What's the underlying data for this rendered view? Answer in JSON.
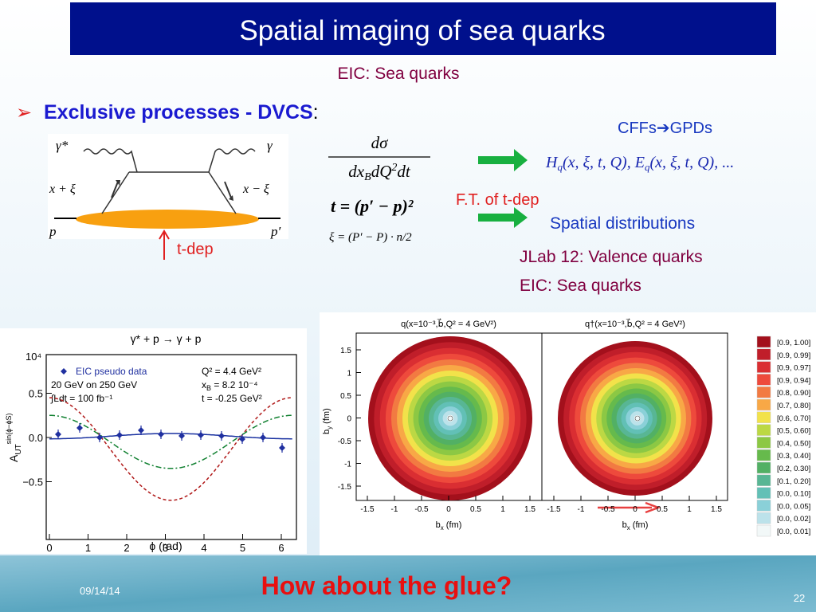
{
  "header": {
    "title": "Spatial imaging of sea quarks",
    "subtitle": "EIC: Sea quarks"
  },
  "bullet": {
    "marker": "➢",
    "text": "Exclusive processes - DVCS",
    "colon": ":"
  },
  "diagram": {
    "labels": [
      "γ*",
      "γ",
      "x + ξ",
      "x − ξ",
      "p",
      "p′"
    ],
    "t_dep": "t-dep"
  },
  "formulas": {
    "num": "dσ",
    "den": [
      "dx",
      "B",
      "dQ",
      "2",
      "dt"
    ],
    "t": "t = (p′ − p)²",
    "xi": "ξ = (P′ − P) · n/2"
  },
  "right": {
    "cffs": "CFFs➔GPDs",
    "gpds": [
      "H",
      "q",
      "(x, ξ, t, Q), ",
      "E",
      "q",
      "(x, ξ, t, Q), ..."
    ],
    "ft": "F.T. of t-dep",
    "spatial": "Spatial distributions",
    "jlab": "JLab 12: Valence quarks",
    "eic": "EIC: Sea quarks"
  },
  "asym_plot": {
    "title": "γ* + p → γ + p",
    "corner": "10⁴",
    "legend": [
      "EIC pseudo data",
      "20 GeV on 250 GeV",
      "∫Ldt = 100 fb⁻¹"
    ],
    "kinematics": [
      "Q² = 4.4 GeV²",
      [
        "x",
        "B",
        " = 8.2 10⁻⁴"
      ],
      "t = -0.25 GeV²"
    ],
    "xticks": [
      "0",
      "1",
      "2",
      "3",
      "4",
      "5",
      "6"
    ],
    "yticks": [
      "0.5",
      "0.0",
      "−0.5"
    ],
    "xlabel": "ϕ (rad)",
    "ylabel": [
      "A",
      "UT",
      "sin(ϕ−ϕS)"
    ]
  },
  "density_plot": {
    "titles": [
      "q(x=10⁻³,b⃗,Q² = 4 GeV²)",
      "q†(x=10⁻³,b⃗,Q² = 4 GeV²)"
    ],
    "xticks": [
      "-1.5",
      "-1",
      "-0.5",
      "0",
      "0.5",
      "1",
      "1.5"
    ],
    "yticks": [
      "1.5",
      "1",
      "0.5",
      "0",
      "-0.5",
      "-1",
      "-1.5"
    ],
    "xlabel": [
      "b",
      "x",
      " (fm)"
    ],
    "ylabel": [
      "b",
      "y",
      " (fm)"
    ],
    "legend": [
      {
        "label": "[0.9, 1.00]",
        "color": "#a3101c"
      },
      {
        "label": "[0.9, 0.99]",
        "color": "#c01e2a"
      },
      {
        "label": "[0.9, 0.97]",
        "color": "#da2e32"
      },
      {
        "label": "[0.9, 0.94]",
        "color": "#ee4a3c"
      },
      {
        "label": "[0.8, 0.90]",
        "color": "#f27a42"
      },
      {
        "label": "[0.7, 0.80]",
        "color": "#f8a846"
      },
      {
        "label": "[0.6, 0.70]",
        "color": "#f2e24a"
      },
      {
        "label": "[0.5, 0.60]",
        "color": "#bcd844"
      },
      {
        "label": "[0.4, 0.50]",
        "color": "#8cc844"
      },
      {
        "label": "[0.3, 0.40]",
        "color": "#66ba4c"
      },
      {
        "label": "[0.2, 0.30]",
        "color": "#52b064"
      },
      {
        "label": "[0.1, 0.20]",
        "color": "#58b694"
      },
      {
        "label": "[0.0, 0.10]",
        "color": "#62c0b6"
      },
      {
        "label": "[0.0, 0.05]",
        "color": "#8ad0d8"
      },
      {
        "label": "[0.0, 0.02]",
        "color": "#bce2ea"
      },
      {
        "label": "[0.0, 0.01]",
        "color": "#f2f8f8"
      }
    ]
  },
  "footer": {
    "date": "09/14/14",
    "question": "How about the glue?",
    "page": "22"
  }
}
